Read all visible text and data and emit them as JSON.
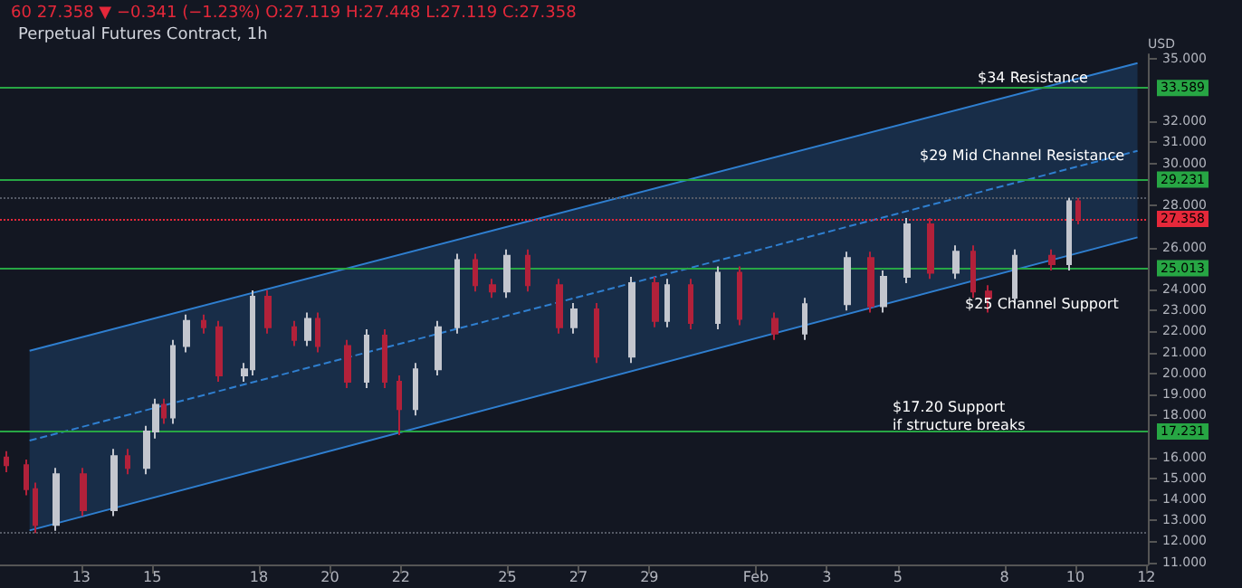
{
  "chart_data": {
    "type": "candlestick",
    "title": "Perpetual Futures Contract, 1h",
    "ylabel": "USD",
    "annotations": [
      "60 27.358 ▼ −0.341 (−1.23%) O:27.119 H:27.448 L:27.119 C:27.358",
      "$34 Resistance",
      "$29 Mid Channel Resistance",
      "$25 Channel Support",
      "$17.20 Support\nif structure breaks"
    ],
    "xlim": [
      "--01-10T17:00",
      "--02-12T01:00"
    ],
    "xticks": [
      {
        "value": "--01-13",
        "label": "13"
      },
      {
        "value": "--01-15",
        "label": "15"
      },
      {
        "value": "--01-18",
        "label": "18"
      },
      {
        "value": "--01-20",
        "label": "20"
      },
      {
        "value": "--01-22",
        "label": "22"
      },
      {
        "value": "--01-25",
        "label": "25"
      },
      {
        "value": "--01-27",
        "label": "27"
      },
      {
        "value": "--01-29",
        "label": "29"
      },
      {
        "value": "--02-01",
        "label": "Feb"
      },
      {
        "value": "--02-03",
        "label": "3"
      },
      {
        "value": "--02-05",
        "label": "5"
      },
      {
        "value": "--02-08",
        "label": "8"
      },
      {
        "value": "--02-10",
        "label": "10"
      },
      {
        "value": "--02-12",
        "label": "12"
      }
    ],
    "ylim": [
      10.9,
      35.2
    ],
    "yticks": [
      {
        "value": 11,
        "label": "11.000"
      },
      {
        "value": 12,
        "label": "12.000"
      },
      {
        "value": 13,
        "label": "13.000"
      },
      {
        "value": 14,
        "label": "14.000"
      },
      {
        "value": 15,
        "label": "15.000"
      },
      {
        "value": 16,
        "label": "16.000"
      },
      {
        "value": 18,
        "label": "18.000"
      },
      {
        "value": 19,
        "label": "19.000"
      },
      {
        "value": 20,
        "label": "20.000"
      },
      {
        "value": 21,
        "label": "21.000"
      },
      {
        "value": 22,
        "label": "22.000"
      },
      {
        "value": 23,
        "label": "23.000"
      },
      {
        "value": 24,
        "label": "24.000"
      },
      {
        "value": 26,
        "label": "26.000"
      },
      {
        "value": 28,
        "label": "28.000"
      },
      {
        "value": 30,
        "label": "30.000"
      },
      {
        "value": 31,
        "label": "31.000"
      },
      {
        "value": 32,
        "label": "32.000"
      },
      {
        "value": 35,
        "label": "35.000"
      }
    ],
    "grid": false,
    "series": [
      {
        "colors": [
          "#b2213a",
          "#b2213a",
          "#b2213a",
          "#c3c6ce",
          "#b2213a",
          "#c3c6ce",
          "#b2213a",
          "#c3c6ce",
          "#c3c6ce",
          "#b2213a",
          "#c3c6ce",
          "#c3c6ce",
          "#b2213a",
          "#b2213a",
          "#c3c6ce",
          "#c3c6ce",
          "#b2213a",
          "#b2213a",
          "#c3c6ce",
          "#b2213a",
          "#b2213a",
          "#c3c6ce",
          "#b2213a",
          "#b2213a",
          "#c3c6ce",
          "#c3c6ce",
          "#c3c6ce",
          "#b2213a",
          "#b2213a",
          "#c3c6ce",
          "#b2213a",
          "#b2213a",
          "#c3c6ce",
          "#b2213a",
          "#c3c6ce",
          "#b2213a",
          "#c3c6ce",
          "#b2213a",
          "#c3c6ce",
          "#b2213a",
          "#b2213a",
          "#c3c6ce",
          "#c3c6ce",
          "#b2213a",
          "#c3c6ce",
          "#c3c6ce",
          "#b2213a",
          "#c3c6ce",
          "#b2213a",
          "#b2213a",
          "#c3c6ce",
          "#b2213a",
          "#c3c6ce",
          "#b2213a"
        ],
        "x": [
          "--01-10T21:00",
          "--01-11T11:00",
          "--01-11T17:00",
          "--01-12T07:00",
          "--01-13T01:00",
          "--01-13T22:00",
          "--01-14T07:00",
          "--01-14T20:00",
          "--01-15T02:00",
          "--01-15T08:00",
          "--01-15T14:00",
          "--01-15T23:00",
          "--01-16T11:00",
          "--01-16T21:00",
          "--01-17T14:00",
          "--01-17T20:00",
          "--01-18T06:00",
          "--01-19T00:00",
          "--01-19T09:00",
          "--01-19T16:00",
          "--01-20T12:00",
          "--01-21T01:00",
          "--01-21T13:00",
          "--01-21T23:00",
          "--01-22T10:00",
          "--01-23T01:00",
          "--01-23T14:00",
          "--01-24T02:00",
          "--01-24T14:00",
          "--01-25T00:00",
          "--01-25T14:00",
          "--01-26T11:00",
          "--01-26T21:00",
          "--01-27T12:00",
          "--01-28T12:00",
          "--01-29T04:00",
          "--01-29T12:00",
          "--01-30T04:00",
          "--01-30T22:00",
          "--01-31T13:00",
          "--02-01T13:00",
          "--02-02T09:00",
          "--02-03T14:00",
          "--02-04T06:00",
          "--02-04T14:00",
          "--02-05T06:00",
          "--02-05T22:00",
          "--02-06T15:00",
          "--02-07T03:00",
          "--02-07T13:00",
          "--02-08T07:00",
          "--02-09T08:00",
          "--02-09T20:00",
          "--02-10T02:00"
        ],
        "ohlc": [
          [
            16.0,
            16.3,
            15.3,
            15.63
          ],
          [
            15.63,
            15.9,
            14.2,
            14.49
          ],
          [
            14.49,
            14.8,
            12.4,
            12.78
          ],
          [
            12.78,
            15.5,
            12.5,
            15.2
          ],
          [
            15.2,
            15.5,
            13.2,
            13.49
          ],
          [
            13.49,
            16.4,
            13.2,
            16.06
          ],
          [
            16.06,
            16.4,
            15.2,
            15.5
          ],
          [
            15.5,
            17.5,
            15.2,
            17.23
          ],
          [
            17.23,
            18.8,
            16.9,
            18.5
          ],
          [
            18.5,
            18.8,
            17.6,
            17.9
          ],
          [
            17.9,
            21.6,
            17.6,
            21.3
          ],
          [
            21.3,
            22.8,
            21.0,
            22.5
          ],
          [
            22.5,
            22.8,
            21.9,
            22.2
          ],
          [
            22.2,
            22.5,
            19.6,
            19.9
          ],
          [
            19.9,
            20.5,
            19.6,
            20.2
          ],
          [
            20.2,
            23.95,
            19.9,
            23.65
          ],
          [
            23.65,
            23.95,
            21.9,
            22.2
          ],
          [
            22.2,
            22.5,
            21.3,
            21.6
          ],
          [
            21.6,
            22.9,
            21.3,
            22.6
          ],
          [
            22.6,
            22.9,
            21.0,
            21.3
          ],
          [
            21.3,
            21.6,
            19.3,
            19.6
          ],
          [
            19.6,
            22.1,
            19.3,
            21.8
          ],
          [
            21.8,
            22.1,
            19.3,
            19.6
          ],
          [
            19.6,
            19.9,
            17.06,
            18.3
          ],
          [
            18.3,
            20.5,
            18.0,
            20.2
          ],
          [
            20.2,
            22.5,
            19.9,
            22.2
          ],
          [
            22.2,
            25.7,
            21.9,
            25.4
          ],
          [
            25.4,
            25.7,
            23.9,
            24.2
          ],
          [
            24.2,
            24.5,
            23.6,
            23.9
          ],
          [
            23.9,
            25.9,
            23.6,
            25.6
          ],
          [
            25.6,
            25.9,
            23.9,
            24.2
          ],
          [
            24.2,
            24.5,
            21.9,
            22.2
          ],
          [
            22.2,
            23.35,
            21.9,
            23.05
          ],
          [
            23.05,
            23.35,
            20.5,
            20.8
          ],
          [
            20.8,
            24.6,
            20.5,
            24.3
          ],
          [
            24.3,
            24.6,
            22.2,
            22.5
          ],
          [
            22.5,
            24.5,
            22.2,
            24.2
          ],
          [
            24.2,
            24.5,
            22.1,
            22.4
          ],
          [
            22.4,
            25.1,
            22.1,
            24.8
          ],
          [
            24.8,
            25.1,
            22.3,
            22.6
          ],
          [
            22.6,
            22.9,
            21.6,
            21.9
          ],
          [
            21.9,
            23.6,
            21.6,
            23.3
          ],
          [
            23.3,
            25.8,
            23.0,
            25.5
          ],
          [
            25.5,
            25.8,
            22.9,
            23.2
          ],
          [
            23.2,
            24.9,
            22.9,
            24.6
          ],
          [
            24.6,
            27.4,
            24.3,
            27.1
          ],
          [
            27.1,
            27.4,
            24.5,
            24.8
          ],
          [
            24.8,
            26.1,
            24.5,
            25.8
          ],
          [
            25.8,
            26.1,
            23.6,
            23.9
          ],
          [
            23.9,
            24.2,
            22.9,
            23.6
          ],
          [
            23.6,
            25.9,
            23.3,
            25.6
          ],
          [
            25.6,
            25.9,
            24.9,
            25.2
          ],
          [
            25.2,
            28.36,
            24.9,
            28.2
          ],
          [
            28.2,
            28.36,
            27.1,
            27.36
          ]
        ]
      },
      {
        "type": "line",
        "color": "#2f7fd0",
        "line_style": "dashed",
        "marker": "none",
        "x": [
          "--01-11T13:00",
          "--02-11T18:00"
        ],
        "values": [
          16.8,
          30.6
        ],
        "lower": [
          12.52,
          26.48
        ],
        "upper": [
          21.08,
          34.78
        ]
      },
      {
        "type": "line",
        "color": "#2f7fd0",
        "line_style": "solid",
        "marker": "none",
        "x": [
          "--01-11T13:00",
          "--02-11T18:00"
        ],
        "values": [
          21.08,
          34.78
        ]
      },
      {
        "type": "line",
        "color": "#2f7fd0",
        "line_style": "solid",
        "marker": "none",
        "x": [
          "--01-11T13:00",
          "--02-11T18:00"
        ],
        "values": [
          12.52,
          26.48
        ]
      }
    ],
    "ref_lines": [
      {
        "axis": "y",
        "value": 33.589,
        "label": "33.589",
        "color": "#27a644",
        "line_style": "solid"
      },
      {
        "axis": "y",
        "value": 29.231,
        "label": "29.231",
        "color": "#27a644",
        "line_style": "solid"
      },
      {
        "axis": "y",
        "value": 25.013,
        "label": "25.013",
        "color": "#27a644",
        "line_style": "solid"
      },
      {
        "axis": "y",
        "value": 17.231,
        "label": "17.231",
        "color": "#27a644",
        "line_style": "solid"
      },
      {
        "axis": "y",
        "value": 27.358,
        "label": "27.358",
        "color": "#e5283a",
        "line_style": "dotted"
      },
      {
        "axis": "y",
        "value": 28.36,
        "color": "#555a66",
        "line_style": "dotted"
      },
      {
        "axis": "y",
        "value": 12.4,
        "color": "#555a66",
        "line_style": "dotted"
      }
    ]
  }
}
